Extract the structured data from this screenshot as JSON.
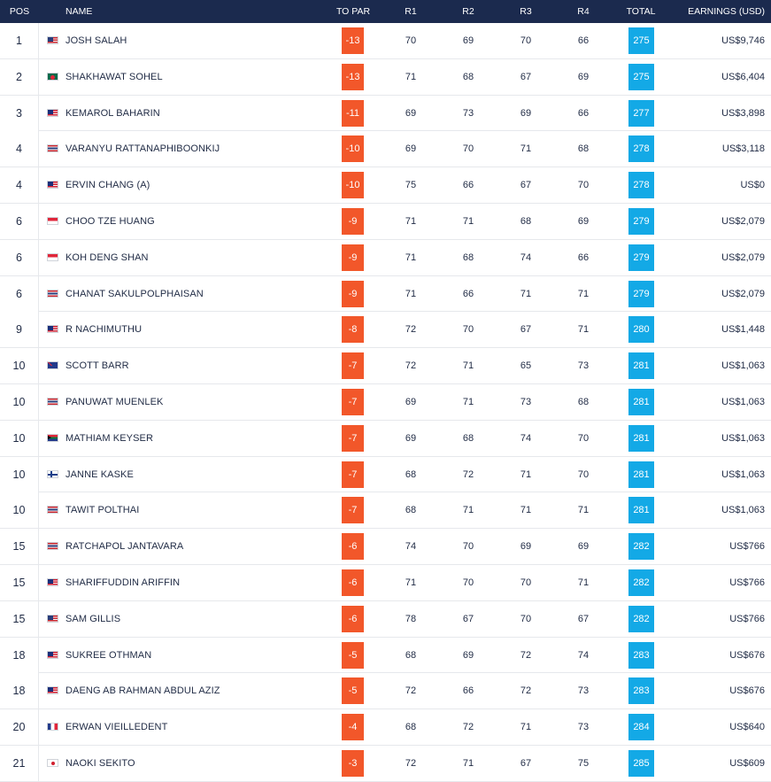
{
  "headers": {
    "pos": "POS",
    "name": "NAME",
    "to_par": "TO PAR",
    "r1": "R1",
    "r2": "R2",
    "r3": "R3",
    "r4": "R4",
    "total": "TOTAL",
    "earnings": "EARNINGS (USD)"
  },
  "colors": {
    "header_bg": "#1b2a4e",
    "to_par_bg": "#f2572a",
    "total_bg": "#13a9e6"
  },
  "rows": [
    {
      "pos": "1",
      "flag": "us-flag-icon",
      "name": "JOSH SALAH",
      "to_par": "-13",
      "r1": "70",
      "r2": "69",
      "r3": "70",
      "r4": "66",
      "total": "275",
      "earnings": "US$9,746"
    },
    {
      "pos": "2",
      "flag": "bangladesh-flag-icon",
      "name": "SHAKHAWAT SOHEL",
      "to_par": "-13",
      "r1": "71",
      "r2": "68",
      "r3": "67",
      "r4": "69",
      "total": "275",
      "earnings": "US$6,404"
    },
    {
      "pos": "3",
      "flag": "malaysia-flag-icon",
      "name": "KEMAROL BAHARIN",
      "to_par": "-11",
      "r1": "69",
      "r2": "73",
      "r3": "69",
      "r4": "66",
      "total": "277",
      "earnings": "US$3,898"
    },
    {
      "pos": "4",
      "flag": "thailand-flag-icon",
      "name": "VARANYU RATTANAPHIBOONKIJ",
      "to_par": "-10",
      "r1": "69",
      "r2": "70",
      "r3": "71",
      "r4": "68",
      "total": "278",
      "earnings": "US$3,118"
    },
    {
      "pos": "4",
      "flag": "malaysia-flag-icon",
      "name": "ERVIN CHANG (A)",
      "to_par": "-10",
      "r1": "75",
      "r2": "66",
      "r3": "67",
      "r4": "70",
      "total": "278",
      "earnings": "US$0"
    },
    {
      "pos": "6",
      "flag": "singapore-flag-icon",
      "name": "CHOO TZE HUANG",
      "to_par": "-9",
      "r1": "71",
      "r2": "71",
      "r3": "68",
      "r4": "69",
      "total": "279",
      "earnings": "US$2,079"
    },
    {
      "pos": "6",
      "flag": "singapore-flag-icon",
      "name": "KOH DENG SHAN",
      "to_par": "-9",
      "r1": "71",
      "r2": "68",
      "r3": "74",
      "r4": "66",
      "total": "279",
      "earnings": "US$2,079"
    },
    {
      "pos": "6",
      "flag": "thailand-flag-icon",
      "name": "CHANAT SAKULPOLPHAISAN",
      "to_par": "-9",
      "r1": "71",
      "r2": "66",
      "r3": "71",
      "r4": "71",
      "total": "279",
      "earnings": "US$2,079"
    },
    {
      "pos": "9",
      "flag": "malaysia-flag-icon",
      "name": "R NACHIMUTHU",
      "to_par": "-8",
      "r1": "72",
      "r2": "70",
      "r3": "67",
      "r4": "71",
      "total": "280",
      "earnings": "US$1,448"
    },
    {
      "pos": "10",
      "flag": "australia-flag-icon",
      "name": "SCOTT BARR",
      "to_par": "-7",
      "r1": "72",
      "r2": "71",
      "r3": "65",
      "r4": "73",
      "total": "281",
      "earnings": "US$1,063"
    },
    {
      "pos": "10",
      "flag": "thailand-flag-icon",
      "name": "PANUWAT MUENLEK",
      "to_par": "-7",
      "r1": "69",
      "r2": "71",
      "r3": "73",
      "r4": "68",
      "total": "281",
      "earnings": "US$1,063"
    },
    {
      "pos": "10",
      "flag": "south-africa-flag-icon",
      "name": "MATHIAM KEYSER",
      "to_par": "-7",
      "r1": "69",
      "r2": "68",
      "r3": "74",
      "r4": "70",
      "total": "281",
      "earnings": "US$1,063"
    },
    {
      "pos": "10",
      "flag": "finland-flag-icon",
      "name": "JANNE KASKE",
      "to_par": "-7",
      "r1": "68",
      "r2": "72",
      "r3": "71",
      "r4": "70",
      "total": "281",
      "earnings": "US$1,063"
    },
    {
      "pos": "10",
      "flag": "thailand-flag-icon",
      "name": "TAWIT POLTHAI",
      "to_par": "-7",
      "r1": "68",
      "r2": "71",
      "r3": "71",
      "r4": "71",
      "total": "281",
      "earnings": "US$1,063"
    },
    {
      "pos": "15",
      "flag": "thailand-flag-icon",
      "name": "RATCHAPOL JANTAVARA",
      "to_par": "-6",
      "r1": "74",
      "r2": "70",
      "r3": "69",
      "r4": "69",
      "total": "282",
      "earnings": "US$766"
    },
    {
      "pos": "15",
      "flag": "malaysia-flag-icon",
      "name": "SHARIFFUDDIN ARIFFIN",
      "to_par": "-6",
      "r1": "71",
      "r2": "70",
      "r3": "70",
      "r4": "71",
      "total": "282",
      "earnings": "US$766"
    },
    {
      "pos": "15",
      "flag": "us-flag-icon",
      "name": "SAM GILLIS",
      "to_par": "-6",
      "r1": "78",
      "r2": "67",
      "r3": "70",
      "r4": "67",
      "total": "282",
      "earnings": "US$766"
    },
    {
      "pos": "18",
      "flag": "malaysia-flag-icon",
      "name": "SUKREE OTHMAN",
      "to_par": "-5",
      "r1": "68",
      "r2": "69",
      "r3": "72",
      "r4": "74",
      "total": "283",
      "earnings": "US$676"
    },
    {
      "pos": "18",
      "flag": "malaysia-flag-icon",
      "name": "DAENG AB RAHMAN ABDUL AZIZ",
      "to_par": "-5",
      "r1": "72",
      "r2": "66",
      "r3": "72",
      "r4": "73",
      "total": "283",
      "earnings": "US$676"
    },
    {
      "pos": "20",
      "flag": "france-flag-icon",
      "name": "ERWAN VIEILLEDENT",
      "to_par": "-4",
      "r1": "68",
      "r2": "72",
      "r3": "71",
      "r4": "73",
      "total": "284",
      "earnings": "US$640"
    },
    {
      "pos": "21",
      "flag": "japan-flag-icon",
      "name": "NAOKI SEKITO",
      "to_par": "-3",
      "r1": "72",
      "r2": "71",
      "r3": "67",
      "r4": "75",
      "total": "285",
      "earnings": "US$609"
    }
  ]
}
